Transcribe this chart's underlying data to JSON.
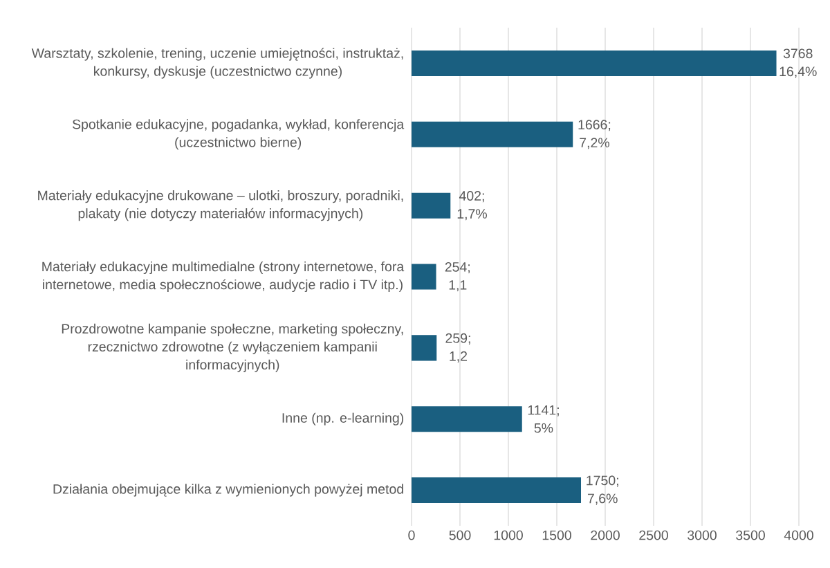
{
  "chart_data": {
    "type": "bar",
    "orientation": "horizontal",
    "categories": [
      "Warsztaty, szkolenie, trening, uczenie umiejętności, instruktaż, konkursy, dyskusje (uczestnictwo czynne)",
      "Spotkanie edukacyjne, pogadanka, wykład, konferencja (uczestnictwo bierne)",
      "Materiały edukacyjne drukowane – ulotki, broszury, poradniki, plakaty (nie dotyczy materiałów informacyjnych)",
      "Materiały edukacyjne multimedialne (strony internetowe, fora internetowe, media społecznościowe, audycje radio i TV itp.)",
      "Prozdrowotne kampanie społeczne, marketing społeczny, rzecznictwo zdrowotne (z wyłączeniem kampanii informacyjnych)",
      "Inne (np. e-learning)",
      "Działania obejmujące kilka z wymienionych powyżej metod"
    ],
    "values": [
      3768,
      1666,
      402,
      254,
      259,
      1141,
      1750
    ],
    "value_labels": [
      "3768 16,4%",
      "1666; 7,2%",
      "402; 1,7%",
      "254; 1,1",
      "259; 1,2",
      "1141; 5%",
      "1750; 7,6%"
    ],
    "color": "#1a5f80",
    "xlim": [
      0,
      4000
    ],
    "xticks": [
      0,
      500,
      1000,
      1500,
      2000,
      2500,
      3000,
      3500,
      4000
    ],
    "grid": "x"
  }
}
